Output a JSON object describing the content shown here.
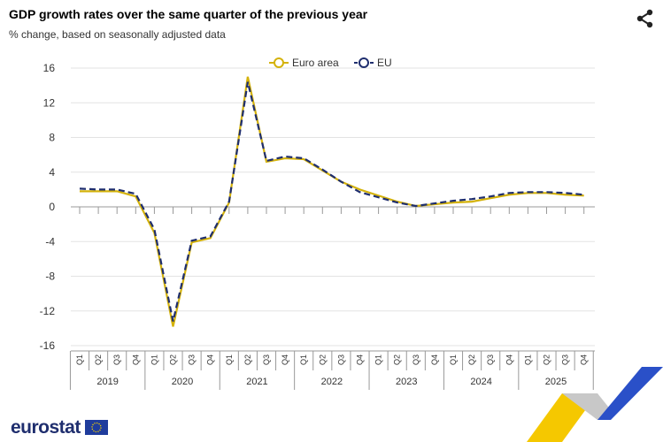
{
  "header": {
    "title": "GDP growth rates over the same quarter of the previous year",
    "subtitle": "% change, based on seasonally adjusted data",
    "share_icon": "share-icon"
  },
  "footer": {
    "logo_text": "eurostat"
  },
  "chart_data": {
    "type": "line",
    "title": "GDP growth rates over the same quarter of the previous year",
    "subtitle": "% change, based on seasonally adjusted data",
    "ylim": [
      -16,
      16
    ],
    "yticks": [
      16,
      12,
      8,
      4,
      0,
      -4,
      -8,
      -12,
      -16
    ],
    "grid": true,
    "legend_position": "top",
    "quarters": [
      "Q1",
      "Q2",
      "Q3",
      "Q4"
    ],
    "years": [
      "2019",
      "2020",
      "2021",
      "2022",
      "2023",
      "2024",
      "2025"
    ],
    "series": [
      {
        "name": "Euro area",
        "color": "#d4b20a",
        "style": "solid",
        "values": [
          1.8,
          1.8,
          1.8,
          1.2,
          -3.0,
          -13.8,
          -4.1,
          -3.6,
          0.5,
          15.0,
          5.2,
          5.6,
          5.5,
          4.2,
          2.9,
          2.0,
          1.3,
          0.6,
          0.1,
          0.3,
          0.5,
          0.6,
          1.0,
          1.4,
          1.6,
          1.6,
          1.4,
          1.3
        ]
      },
      {
        "name": "EU",
        "color": "#1f2e6e",
        "style": "dashed",
        "values": [
          2.1,
          2.0,
          2.0,
          1.5,
          -2.6,
          -13.2,
          -3.9,
          -3.4,
          0.6,
          14.4,
          5.3,
          5.8,
          5.6,
          4.3,
          2.9,
          1.7,
          1.1,
          0.5,
          0.1,
          0.4,
          0.7,
          0.9,
          1.2,
          1.6,
          1.7,
          1.7,
          1.6,
          1.4
        ]
      }
    ]
  }
}
